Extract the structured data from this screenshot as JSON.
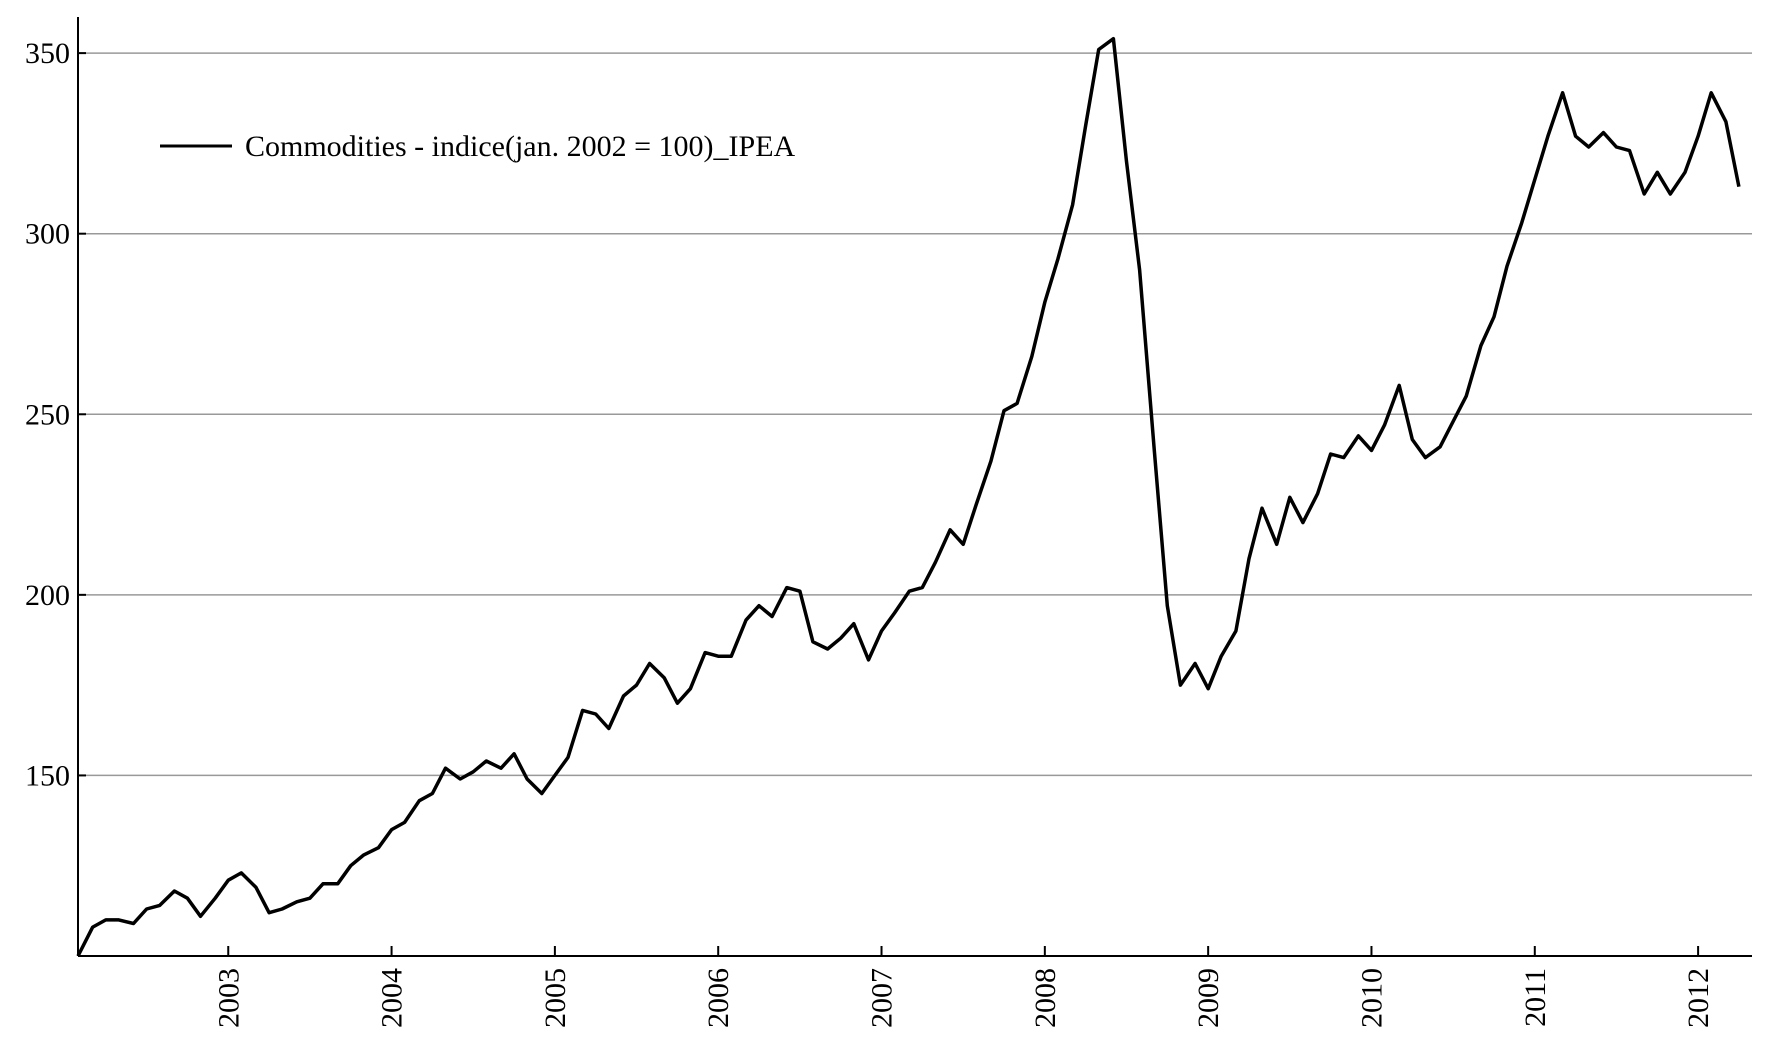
{
  "chart_data": {
    "type": "line",
    "x": [
      2002.08,
      2002.17,
      2002.25,
      2002.33,
      2002.42,
      2002.5,
      2002.58,
      2002.67,
      2002.75,
      2002.83,
      2002.92,
      2003,
      2003.08,
      2003.17,
      2003.25,
      2003.33,
      2003.42,
      2003.5,
      2003.58,
      2003.67,
      2003.75,
      2003.83,
      2003.92,
      2004,
      2004.08,
      2004.17,
      2004.25,
      2004.33,
      2004.42,
      2004.5,
      2004.58,
      2004.67,
      2004.75,
      2004.83,
      2004.92,
      2005,
      2005.08,
      2005.17,
      2005.25,
      2005.33,
      2005.42,
      2005.5,
      2005.58,
      2005.67,
      2005.75,
      2005.83,
      2005.92,
      2006,
      2006.08,
      2006.17,
      2006.25,
      2006.33,
      2006.42,
      2006.5,
      2006.58,
      2006.67,
      2006.75,
      2006.83,
      2006.92,
      2007,
      2007.08,
      2007.17,
      2007.25,
      2007.33,
      2007.42,
      2007.5,
      2007.58,
      2007.67,
      2007.75,
      2007.83,
      2007.92,
      2008,
      2008.08,
      2008.17,
      2008.25,
      2008.33,
      2008.42,
      2008.5,
      2008.58,
      2008.67,
      2008.75,
      2008.83,
      2008.92,
      2009,
      2009.08,
      2009.17,
      2009.25,
      2009.33,
      2009.42,
      2009.5,
      2009.58,
      2009.67,
      2009.75,
      2009.83,
      2009.92,
      2010,
      2010.08,
      2010.17,
      2010.25,
      2010.33,
      2010.42,
      2010.5,
      2010.58,
      2010.67,
      2010.75,
      2010.83,
      2010.92,
      2011,
      2011.08,
      2011.17,
      2011.25,
      2011.33,
      2011.42,
      2011.5,
      2011.58,
      2011.67,
      2011.75,
      2011.83,
      2011.92,
      2012,
      2012.08,
      2012.17,
      2012.25
    ],
    "series": [
      {
        "name": "Commodities - indice(jan. 2002 = 100)_IPEA",
        "color": "#000000",
        "values": [
          100,
          108,
          110,
          110,
          109,
          113,
          114,
          118,
          116,
          111,
          116,
          121,
          123,
          119,
          112,
          113,
          115,
          116,
          120,
          120,
          125,
          128,
          130,
          135,
          137,
          143,
          145,
          152,
          149,
          151,
          154,
          152,
          156,
          149,
          145,
          150,
          155,
          168,
          167,
          163,
          172,
          175,
          181,
          177,
          170,
          174,
          184,
          183,
          183,
          193,
          197,
          194,
          202,
          201,
          187,
          185,
          188,
          192,
          182,
          190,
          195,
          201,
          202,
          209,
          218,
          214,
          225,
          237,
          251,
          253,
          266,
          281,
          293,
          308,
          330,
          351,
          354,
          320,
          290,
          240,
          197,
          175,
          181,
          174,
          183,
          190,
          210,
          224,
          214,
          227,
          220,
          228,
          239,
          238,
          244,
          240,
          247,
          258,
          243,
          238,
          241,
          248,
          255,
          269,
          277,
          291,
          303,
          315,
          327,
          339,
          327,
          324,
          328,
          324,
          323,
          311,
          317,
          311,
          317,
          327,
          339,
          331,
          313
        ]
      }
    ],
    "xlim": [
      2002.08,
      2012.33
    ],
    "xticks": [
      2003,
      2004,
      2005,
      2006,
      2007,
      2008,
      2009,
      2010,
      2011,
      2012
    ],
    "ylim": [
      100,
      360
    ],
    "yticks": [
      150,
      200,
      250,
      300,
      350
    ],
    "grid": true,
    "legend": "upper left"
  }
}
